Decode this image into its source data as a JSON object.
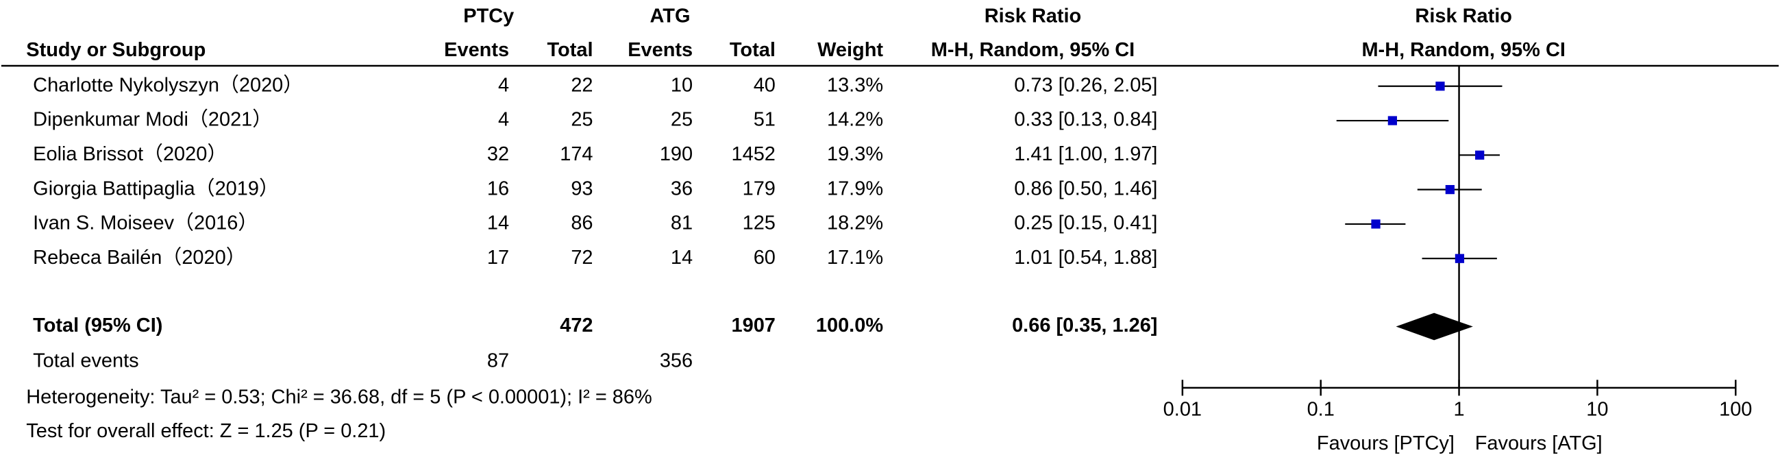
{
  "table": {
    "group_headers": [
      "PTCy",
      "ATG"
    ],
    "columns": [
      "Study or Subgroup",
      "Events",
      "Total",
      "Events",
      "Total",
      "Weight"
    ],
    "ci_header": {
      "title": "Risk Ratio",
      "subtitle": "M-H, Random, 95% CI"
    },
    "rows": [
      [
        "Charlotte Nykolyszyn（2020）",
        4,
        22,
        10,
        40,
        "13.3%"
      ],
      [
        "Dipenkumar Modi（2021）",
        4,
        25,
        25,
        51,
        "14.2%"
      ],
      [
        "Eolia Brissot（2020）",
        32,
        174,
        190,
        1452,
        "19.3%"
      ],
      [
        "Giorgia Battipaglia（2019）",
        16,
        93,
        36,
        179,
        "17.9%"
      ],
      [
        "Ivan S. Moiseev（2016）",
        14,
        86,
        81,
        125,
        "18.2%"
      ],
      [
        "Rebeca Bailén（2020）",
        17,
        72,
        14,
        60,
        "17.1%"
      ]
    ],
    "total": [
      "Total (95% CI)",
      472,
      1907,
      "100.0%"
    ],
    "total_events": [
      "Total events",
      87,
      356
    ],
    "heterogeneity": "Heterogeneity: Tau² = 0.53; Chi² = 36.68, df = 5 (P < 0.00001); I² = 86%",
    "overall_effect": "Test for overall effect: Z = 1.25 (P = 0.21)"
  },
  "chart_data": {
    "type": "forest",
    "title": "Risk Ratio",
    "subtitle": "M-H, Random, 95% CI",
    "values": [
      0.73,
      0.33,
      1.41,
      0.86,
      0.25,
      1.01
    ],
    "lower": [
      0.26,
      0.13,
      1.0,
      0.5,
      0.15,
      0.54
    ],
    "upper": [
      2.05,
      0.84,
      1.97,
      1.46,
      0.41,
      1.88
    ],
    "value_labels": [
      "0.73 [0.26, 2.05]",
      "0.33 [0.13, 0.84]",
      "1.41 [1.00, 1.97]",
      "0.86 [0.50, 1.46]",
      "0.25 [0.15, 0.41]",
      "1.01 [0.54, 1.88]"
    ],
    "pooled": {
      "value": 0.66,
      "lower": 0.35,
      "upper": 1.26,
      "label": "0.66 [0.35, 1.26]"
    },
    "xlim": [
      0.01,
      100
    ],
    "xticks": [
      0.01,
      0.1,
      1,
      10,
      100
    ],
    "log_x": true,
    "xlabel_left": "Favours [PTCy]",
    "xlabel_right": "Favours [ATG]",
    "color": "#0000cc"
  }
}
